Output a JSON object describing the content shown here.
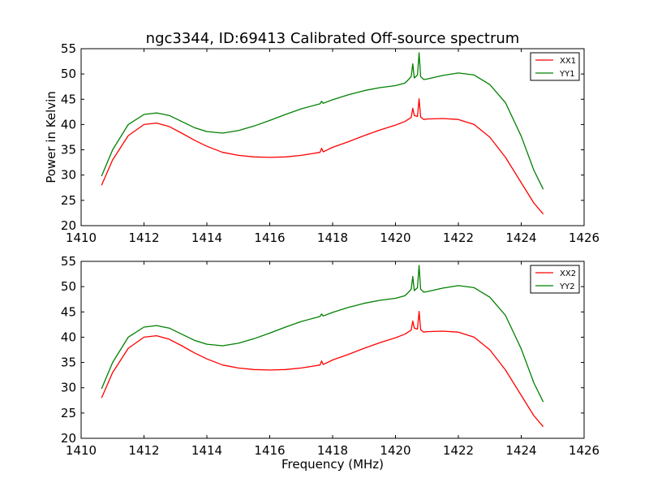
{
  "title": "ngc3344, ID:69413 Calibrated Off-source spectrum",
  "ylabel": "Power in Kelvin",
  "xlabel": "Frequency (MHz)",
  "colors": {
    "xx": "#ff0000",
    "yy": "#008000"
  },
  "chart_data": [
    {
      "type": "line",
      "xlim": [
        1410,
        1426
      ],
      "ylim": [
        20,
        55
      ],
      "xticks": [
        "1410",
        "1412",
        "1414",
        "1416",
        "1418",
        "1420",
        "1422",
        "1424",
        "1426"
      ],
      "yticks": [
        "20",
        "25",
        "30",
        "35",
        "40",
        "45",
        "50",
        "55"
      ],
      "legend_position": "top-right",
      "series": [
        {
          "name": "XX1",
          "color": "#ff0000",
          "x": [
            1410.65,
            1411.0,
            1411.5,
            1412.0,
            1412.4,
            1412.8,
            1413.2,
            1413.6,
            1414.0,
            1414.5,
            1415.0,
            1415.5,
            1416.0,
            1416.5,
            1417.0,
            1417.6,
            1417.65,
            1417.7,
            1418.0,
            1418.5,
            1419.0,
            1419.5,
            1420.0,
            1420.3,
            1420.4,
            1420.5,
            1420.55,
            1420.6,
            1420.7,
            1420.75,
            1420.8,
            1420.9,
            1421.0,
            1421.5,
            1422.0,
            1422.5,
            1423.0,
            1423.5,
            1424.0,
            1424.4,
            1424.7
          ],
          "y": [
            28.0,
            33.0,
            37.8,
            40.0,
            40.3,
            39.6,
            38.3,
            36.9,
            35.7,
            34.5,
            33.9,
            33.6,
            33.5,
            33.6,
            33.9,
            34.5,
            35.3,
            34.6,
            35.5,
            36.6,
            37.8,
            38.9,
            39.9,
            40.6,
            41.0,
            41.4,
            43.2,
            41.8,
            41.6,
            45.1,
            41.5,
            41.0,
            41.1,
            41.2,
            41.0,
            40.0,
            37.5,
            33.5,
            28.5,
            24.5,
            22.3
          ]
        },
        {
          "name": "YY1",
          "color": "#008000",
          "x": [
            1410.65,
            1411.0,
            1411.5,
            1412.0,
            1412.4,
            1412.8,
            1413.2,
            1413.6,
            1414.0,
            1414.5,
            1415.0,
            1415.5,
            1416.0,
            1416.5,
            1417.0,
            1417.6,
            1417.65,
            1417.7,
            1418.0,
            1418.5,
            1419.0,
            1419.5,
            1420.0,
            1420.3,
            1420.4,
            1420.5,
            1420.55,
            1420.6,
            1420.7,
            1420.75,
            1420.8,
            1420.9,
            1421.0,
            1421.5,
            1422.0,
            1422.5,
            1423.0,
            1423.5,
            1424.0,
            1424.4,
            1424.7
          ],
          "y": [
            29.8,
            35.0,
            40.0,
            42.0,
            42.3,
            41.8,
            40.6,
            39.4,
            38.6,
            38.3,
            38.8,
            39.7,
            40.8,
            42.0,
            43.1,
            44.1,
            44.6,
            44.2,
            44.9,
            45.9,
            46.7,
            47.3,
            47.7,
            48.2,
            48.8,
            49.5,
            52.0,
            49.2,
            49.8,
            54.2,
            49.5,
            48.9,
            49.0,
            49.7,
            50.2,
            49.8,
            47.9,
            44.3,
            37.7,
            31.0,
            27.2
          ]
        }
      ]
    },
    {
      "type": "line",
      "xlim": [
        1410,
        1426
      ],
      "ylim": [
        20,
        55
      ],
      "xticks": [
        "1410",
        "1412",
        "1414",
        "1416",
        "1418",
        "1420",
        "1422",
        "1424",
        "1426"
      ],
      "yticks": [
        "20",
        "25",
        "30",
        "35",
        "40",
        "45",
        "50",
        "55"
      ],
      "legend_position": "top-right",
      "series": [
        {
          "name": "XX2",
          "color": "#ff0000",
          "x": [
            1410.65,
            1411.0,
            1411.5,
            1412.0,
            1412.4,
            1412.8,
            1413.2,
            1413.6,
            1414.0,
            1414.5,
            1415.0,
            1415.5,
            1416.0,
            1416.5,
            1417.0,
            1417.6,
            1417.65,
            1417.7,
            1418.0,
            1418.5,
            1419.0,
            1419.5,
            1420.0,
            1420.3,
            1420.4,
            1420.5,
            1420.55,
            1420.6,
            1420.7,
            1420.75,
            1420.8,
            1420.9,
            1421.0,
            1421.5,
            1422.0,
            1422.5,
            1423.0,
            1423.5,
            1424.0,
            1424.4,
            1424.7
          ],
          "y": [
            28.0,
            33.0,
            37.8,
            40.0,
            40.3,
            39.6,
            38.3,
            36.9,
            35.7,
            34.5,
            33.9,
            33.6,
            33.5,
            33.6,
            33.9,
            34.5,
            35.3,
            34.6,
            35.5,
            36.6,
            37.8,
            38.9,
            39.9,
            40.6,
            41.0,
            41.4,
            43.2,
            41.8,
            41.6,
            45.1,
            41.5,
            41.0,
            41.1,
            41.2,
            41.0,
            40.0,
            37.5,
            33.5,
            28.5,
            24.5,
            22.3
          ]
        },
        {
          "name": "YY2",
          "color": "#008000",
          "x": [
            1410.65,
            1411.0,
            1411.5,
            1412.0,
            1412.4,
            1412.8,
            1413.2,
            1413.6,
            1414.0,
            1414.5,
            1415.0,
            1415.5,
            1416.0,
            1416.5,
            1417.0,
            1417.6,
            1417.65,
            1417.7,
            1418.0,
            1418.5,
            1419.0,
            1419.5,
            1420.0,
            1420.3,
            1420.4,
            1420.5,
            1420.55,
            1420.6,
            1420.7,
            1420.75,
            1420.8,
            1420.9,
            1421.0,
            1421.5,
            1422.0,
            1422.5,
            1423.0,
            1423.5,
            1424.0,
            1424.4,
            1424.7
          ],
          "y": [
            29.8,
            35.0,
            40.0,
            42.0,
            42.3,
            41.8,
            40.6,
            39.4,
            38.6,
            38.3,
            38.8,
            39.7,
            40.8,
            42.0,
            43.1,
            44.1,
            44.6,
            44.2,
            44.9,
            45.9,
            46.7,
            47.3,
            47.7,
            48.2,
            48.8,
            49.5,
            52.0,
            49.2,
            49.8,
            54.2,
            49.5,
            48.9,
            49.0,
            49.7,
            50.2,
            49.8,
            47.9,
            44.3,
            37.7,
            31.0,
            27.2
          ]
        }
      ]
    }
  ]
}
